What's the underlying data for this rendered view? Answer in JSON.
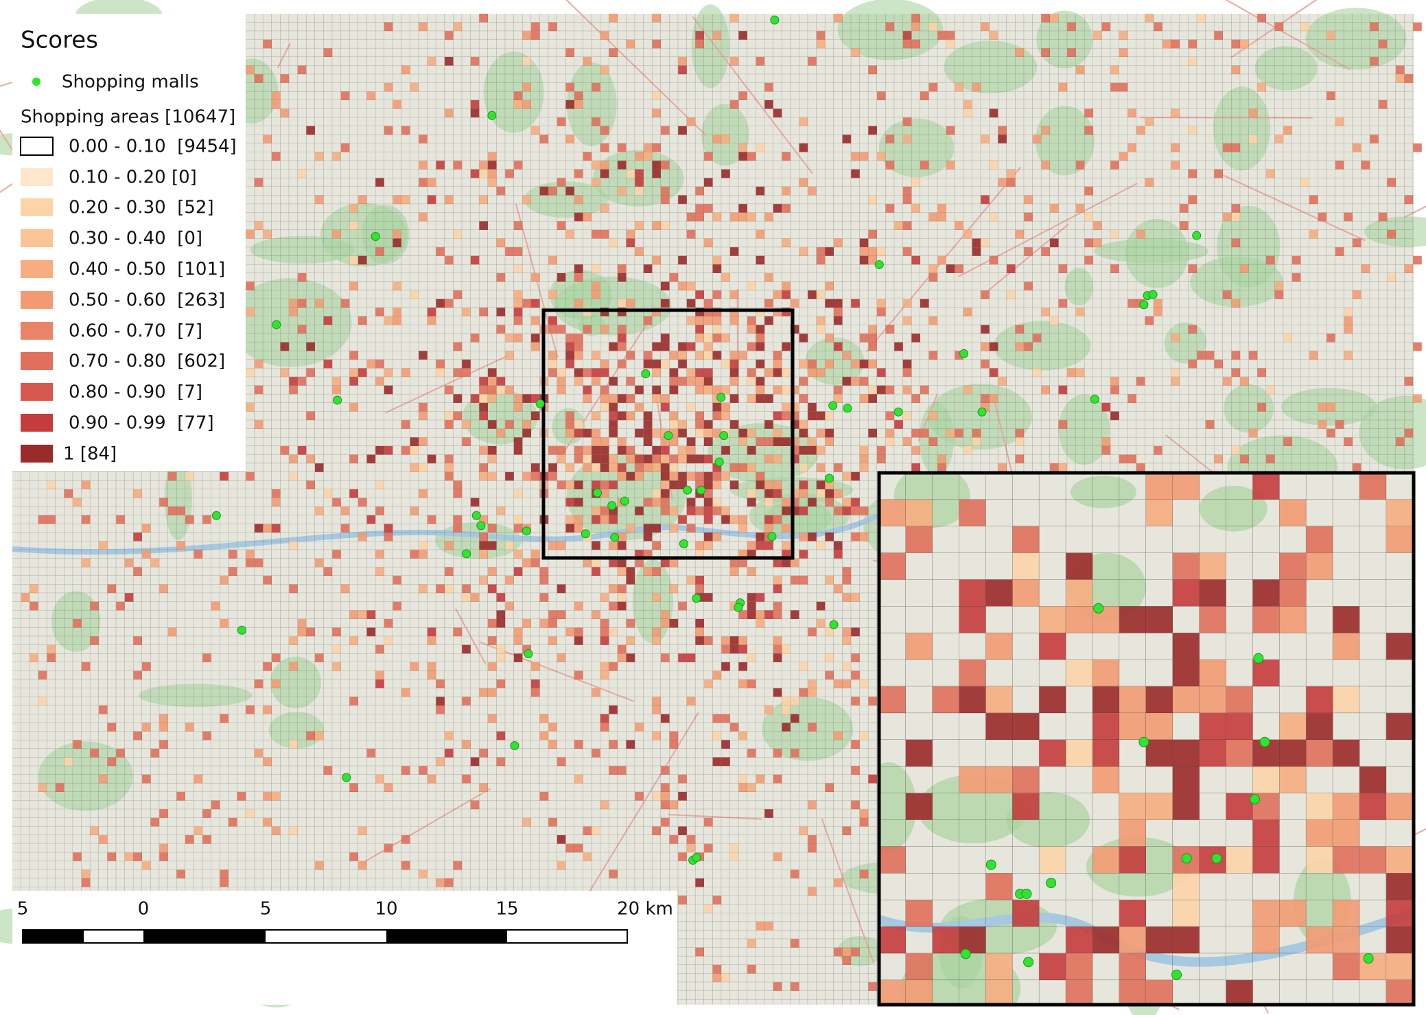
{
  "legend": {
    "title": "Scores",
    "malls": {
      "label": "Shopping malls",
      "color": "#2ee62e"
    },
    "areas_heading": "Shopping areas [10647]",
    "classes": [
      {
        "label": "0.00 - 0.10  [9454]",
        "color": "#ffffff"
      },
      {
        "label": "0.10 - 0.20 [0]",
        "color": "#fde6cc"
      },
      {
        "label": "0.20 - 0.30  [52]",
        "color": "#fcd4a8"
      },
      {
        "label": "0.30 - 0.40  [0]",
        "color": "#fbc495"
      },
      {
        "label": "0.40 - 0.50  [101]",
        "color": "#f6ad80"
      },
      {
        "label": "0.50 - 0.60  [263]",
        "color": "#f29b73"
      },
      {
        "label": "0.60 - 0.70  [7]",
        "color": "#ea8468"
      },
      {
        "label": "0.70 - 0.80  [602]",
        "color": "#e0705c"
      },
      {
        "label": "0.80 - 0.90  [7]",
        "color": "#d6584e"
      },
      {
        "label": "0.90 - 0.99  [77]",
        "color": "#c43c3c"
      },
      {
        "label": "1 [84]",
        "color": "#9b2a2a"
      }
    ]
  },
  "scale_bar": {
    "labels": [
      "5",
      "0",
      "5",
      "10",
      "15",
      "20 km"
    ]
  }
}
